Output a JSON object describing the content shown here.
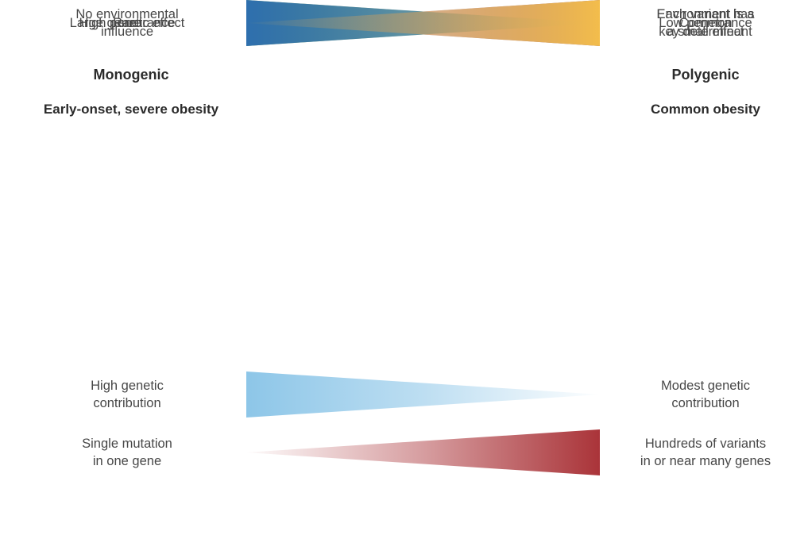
{
  "headers": {
    "left": {
      "title": "Monogenic",
      "subtitle": "Early-onset, severe obesity"
    },
    "right": {
      "title": "Polygenic",
      "subtitle": "Common obesity"
    }
  },
  "rows": [
    {
      "left": "High genetic\ncontribution",
      "right": "Modest genetic\ncontribution",
      "color": "#8dc6e8",
      "thick_side": "left",
      "wedge_name": "high-to-modest-genetic-contribution-wedge"
    },
    {
      "left": "Single mutation\nin one gene",
      "right": "Hundreds of variants\nin or near many genes",
      "color": "#aa3439",
      "thick_side": "right",
      "wedge_name": "single-mutation-to-many-variants-wedge"
    },
    {
      "left": "Large genetic effect",
      "right": "Each variant has\na small effect",
      "color": "#78a84f",
      "thick_side": "left",
      "wedge_name": "large-to-small-genetic-effect-wedge"
    },
    {
      "left": "Rare",
      "right": "Common",
      "color": "#7d4184",
      "thick_side": "right",
      "wedge_name": "rare-to-common-wedge"
    },
    {
      "left": "High penetrance",
      "right": "Low penetrance",
      "color": "#2e6fae",
      "thick_side": "left",
      "wedge_name": "high-to-low-penetrance-wedge"
    },
    {
      "left": "No environmental\ninfluence",
      "right": "Environment is a\nkey determinant",
      "color": "#f3bd4c",
      "thick_side": "right",
      "wedge_name": "environment-influence-wedge"
    }
  ],
  "colors": {
    "background": "#ffffff",
    "heading_text": "#2b2b2b",
    "label_text": "#474747"
  }
}
